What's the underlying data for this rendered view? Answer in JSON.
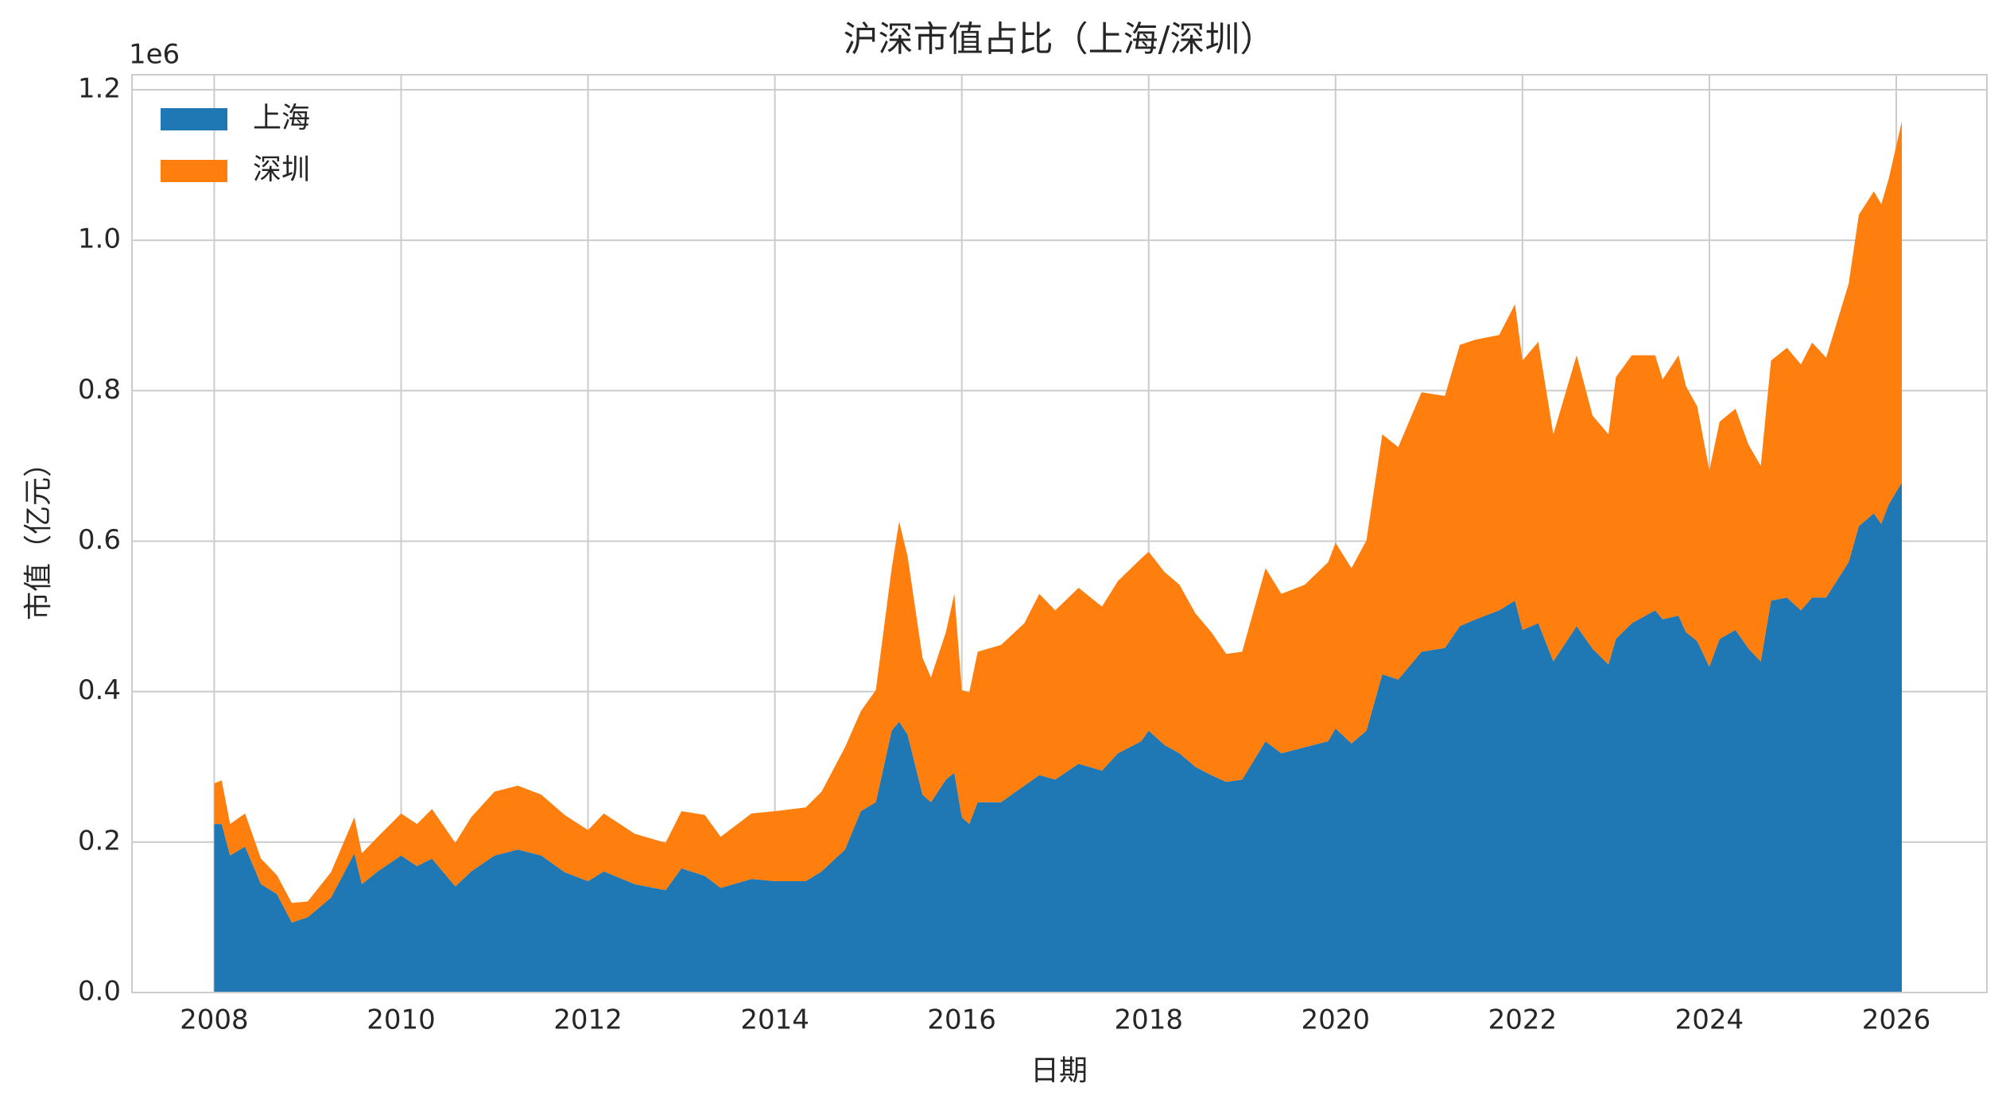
{
  "chart_data": {
    "type": "stacked_area",
    "title": "沪深市值占比（上海/深圳）",
    "xlabel": "日期",
    "ylabel": "市值（亿元）",
    "y_offset_label": "1e6",
    "legend": "upper left",
    "grid": true,
    "x": [
      2008.0,
      2008.08,
      2008.17,
      2008.33,
      2008.5,
      2008.67,
      2008.83,
      2009.0,
      2009.25,
      2009.5,
      2009.58,
      2009.75,
      2010.0,
      2010.17,
      2010.33,
      2010.58,
      2010.75,
      2011.0,
      2011.25,
      2011.5,
      2011.75,
      2012.0,
      2012.17,
      2012.5,
      2012.83,
      2013.0,
      2013.25,
      2013.42,
      2013.75,
      2014.0,
      2014.33,
      2014.5,
      2014.75,
      2014.92,
      2015.08,
      2015.25,
      2015.33,
      2015.42,
      2015.58,
      2015.67,
      2015.83,
      2015.92,
      2016.0,
      2016.08,
      2016.17,
      2016.42,
      2016.67,
      2016.83,
      2017.0,
      2017.25,
      2017.5,
      2017.67,
      2017.92,
      2018.0,
      2018.17,
      2018.33,
      2018.5,
      2018.67,
      2018.83,
      2019.0,
      2019.25,
      2019.42,
      2019.67,
      2019.92,
      2020.0,
      2020.17,
      2020.33,
      2020.5,
      2020.67,
      2020.92,
      2021.17,
      2021.33,
      2021.5,
      2021.75,
      2021.92,
      2022.0,
      2022.17,
      2022.33,
      2022.58,
      2022.75,
      2022.92,
      2023.0,
      2023.17,
      2023.42,
      2023.5,
      2023.67,
      2023.75,
      2023.87,
      2024.0,
      2024.11,
      2024.28,
      2024.42,
      2024.55,
      2024.66,
      2024.83,
      2024.98,
      2025.1,
      2025.25,
      2025.49,
      2025.6,
      2025.76,
      2025.84,
      2025.92,
      2026.06
    ],
    "series": [
      {
        "name": "上海",
        "color": "#1f77b4",
        "values": [
          224000,
          224000,
          182000,
          194000,
          144000,
          131000,
          93000,
          100000,
          126000,
          185000,
          144000,
          161000,
          182000,
          168000,
          178000,
          141000,
          161000,
          182000,
          190000,
          182000,
          160000,
          148000,
          161000,
          144000,
          136000,
          165000,
          155000,
          139000,
          151000,
          148000,
          148000,
          161000,
          190000,
          241000,
          253000,
          348000,
          360000,
          343000,
          263000,
          253000,
          283000,
          292000,
          233000,
          224000,
          253000,
          253000,
          275000,
          289000,
          283000,
          304000,
          295000,
          318000,
          334000,
          348000,
          329000,
          318000,
          300000,
          289000,
          280000,
          283000,
          334000,
          318000,
          326000,
          334000,
          351000,
          331000,
          348000,
          423000,
          416000,
          453000,
          458000,
          487000,
          496000,
          508000,
          521000,
          482000,
          491000,
          440000,
          487000,
          457000,
          436000,
          470000,
          491000,
          508000,
          496000,
          501000,
          479000,
          467000,
          433000,
          470000,
          482000,
          457000,
          440000,
          521000,
          525000,
          508000,
          525000,
          525000,
          572000,
          620000,
          637000,
          623000,
          649000,
          678000
        ]
      },
      {
        "name": "深圳",
        "color": "#ff7f0e",
        "values": [
          54000,
          58000,
          42000,
          44000,
          34000,
          25000,
          26000,
          21000,
          34000,
          48000,
          41000,
          46000,
          56000,
          56000,
          66000,
          58000,
          72000,
          85000,
          85000,
          81000,
          76000,
          68000,
          77000,
          67000,
          63000,
          76000,
          81000,
          68000,
          87000,
          93000,
          98000,
          106000,
          136000,
          133000,
          149000,
          216000,
          266000,
          237000,
          182000,
          166000,
          196000,
          238000,
          169000,
          175000,
          200000,
          209000,
          216000,
          241000,
          225000,
          234000,
          218000,
          229000,
          243000,
          238000,
          230000,
          224000,
          204000,
          190000,
          170000,
          170000,
          230000,
          212000,
          216000,
          238000,
          247000,
          233000,
          253000,
          319000,
          309000,
          345000,
          335000,
          374000,
          372000,
          366000,
          394000,
          358000,
          374000,
          302000,
          360000,
          310000,
          306000,
          348000,
          356000,
          339000,
          319000,
          346000,
          327000,
          312000,
          261000,
          289000,
          294000,
          271000,
          260000,
          319000,
          332000,
          327000,
          339000,
          319000,
          370000,
          414000,
          428000,
          425000,
          433000,
          480000
        ]
      }
    ],
    "xlim": [
      2007.12,
      2026.97
    ],
    "xticks": [
      2008,
      2010,
      2012,
      2014,
      2016,
      2018,
      2020,
      2022,
      2024,
      2026
    ],
    "ylim": [
      0,
      1220000
    ],
    "yticks": [
      {
        "value": 0,
        "label": "0.0"
      },
      {
        "value": 200000,
        "label": "0.2"
      },
      {
        "value": 400000,
        "label": "0.4"
      },
      {
        "value": 600000,
        "label": "0.6"
      },
      {
        "value": 800000,
        "label": "0.8"
      },
      {
        "value": 1000000,
        "label": "1.0"
      },
      {
        "value": 1200000,
        "label": "1.2"
      }
    ]
  }
}
